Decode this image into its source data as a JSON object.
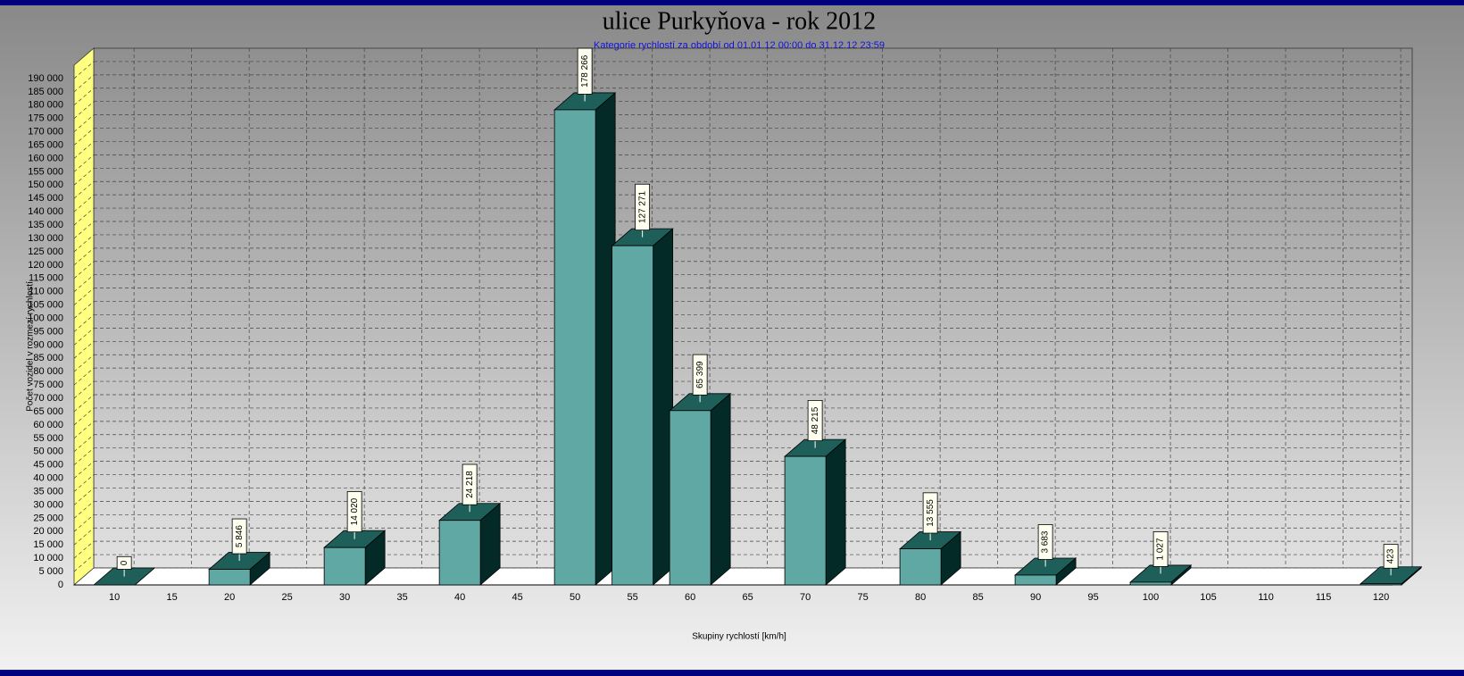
{
  "chart_data": {
    "type": "bar3d",
    "title": "ulice Purkyňova - rok 2012",
    "subtitle": "Kategorie rychlostí za období od 01.01.12 00:00 do 31.12.12 23:59",
    "x_label": "Skupiny rychlostí [km/h]",
    "y_label": "Počet vozidel v rozmezí rychlostí",
    "x": [
      10,
      20,
      30,
      40,
      50,
      55,
      60,
      70,
      80,
      90,
      100,
      120
    ],
    "values": [
      0,
      5846,
      14020,
      24218,
      178266,
      127271,
      65399,
      48215,
      13555,
      3683,
      1027,
      423
    ],
    "value_labels": [
      "0",
      "5 846",
      "14 020",
      "24 218",
      "178 266",
      "127 271",
      "65 399",
      "48 215",
      "13 555",
      "3 683",
      "1 027",
      "423"
    ],
    "color": "#5fa8a3",
    "xlim": [
      6.5,
      121
    ],
    "xticks": [
      10,
      15,
      20,
      25,
      30,
      35,
      40,
      45,
      50,
      55,
      60,
      65,
      70,
      75,
      80,
      85,
      90,
      95,
      100,
      105,
      110,
      115,
      120
    ],
    "ylim": [
      0,
      195000
    ],
    "yticks": [
      0,
      {
        "value": 5000,
        "label": "5 000"
      },
      {
        "value": 10000,
        "label": "10 000"
      },
      {
        "value": 15000,
        "label": "15 000"
      },
      {
        "value": 20000,
        "label": "20 000"
      },
      {
        "value": 25000,
        "label": "25 000"
      },
      {
        "value": 30000,
        "label": "30 000"
      },
      {
        "value": 35000,
        "label": "35 000"
      },
      {
        "value": 40000,
        "label": "40 000"
      },
      {
        "value": 45000,
        "label": "45 000"
      },
      {
        "value": 50000,
        "label": "50 000"
      },
      {
        "value": 55000,
        "label": "55 000"
      },
      {
        "value": 60000,
        "label": "60 000"
      },
      {
        "value": 65000,
        "label": "65 000"
      },
      {
        "value": 70000,
        "label": "70 000"
      },
      {
        "value": 75000,
        "label": "75 000"
      },
      {
        "value": 80000,
        "label": "80 000"
      },
      {
        "value": 85000,
        "label": "85 000"
      },
      {
        "value": 90000,
        "label": "90 000"
      },
      {
        "value": 95000,
        "label": "95 000"
      },
      {
        "value": 100000,
        "label": "100 000"
      },
      {
        "value": 105000,
        "label": "105 000"
      },
      {
        "value": 110000,
        "label": "110 000"
      },
      {
        "value": 115000,
        "label": "115 000"
      },
      {
        "value": 120000,
        "label": "120 000"
      },
      {
        "value": 125000,
        "label": "125 000"
      },
      {
        "value": 130000,
        "label": "130 000"
      },
      {
        "value": 135000,
        "label": "135 000"
      },
      {
        "value": 140000,
        "label": "140 000"
      },
      {
        "value": 145000,
        "label": "145 000"
      },
      {
        "value": 150000,
        "label": "150 000"
      },
      {
        "value": 155000,
        "label": "155 000"
      },
      {
        "value": 160000,
        "label": "160 000"
      },
      {
        "value": 165000,
        "label": "165 000"
      },
      {
        "value": 170000,
        "label": "170 000"
      },
      {
        "value": 175000,
        "label": "175 000"
      },
      {
        "value": 180000,
        "label": "180 000"
      },
      {
        "value": 185000,
        "label": "185 000"
      },
      {
        "value": 190000,
        "label": "190 000"
      }
    ],
    "grid": true
  }
}
